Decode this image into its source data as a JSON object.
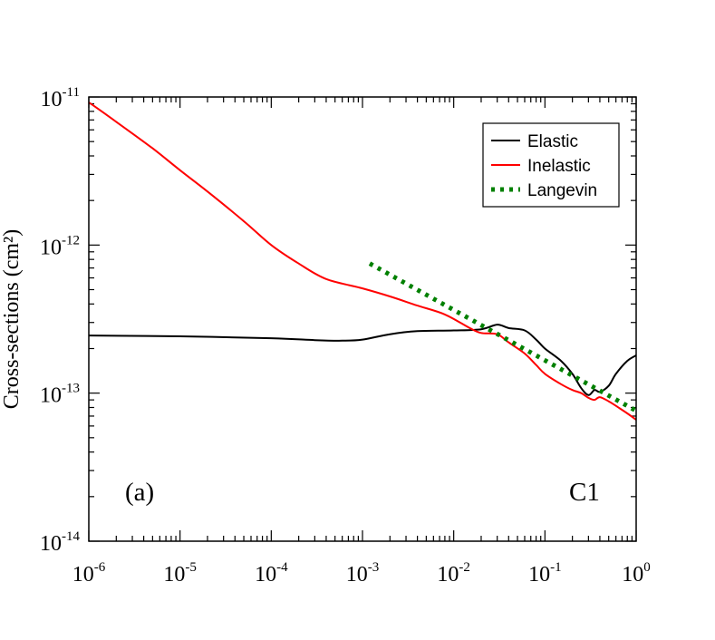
{
  "chart_data": {
    "type": "line",
    "title": "",
    "xlabel": "",
    "ylabel": "Cross-sections (cm²)",
    "xscale": "log",
    "yscale": "log",
    "xlim": [
      1e-06,
      1
    ],
    "ylim": [
      1e-14,
      1e-11
    ],
    "grid": false,
    "legend_position": "top-right",
    "x_ticks": [
      {
        "base": "10",
        "exp": "-6"
      },
      {
        "base": "10",
        "exp": "-5"
      },
      {
        "base": "10",
        "exp": "-4"
      },
      {
        "base": "10",
        "exp": "-3"
      },
      {
        "base": "10",
        "exp": "-2"
      },
      {
        "base": "10",
        "exp": "-1"
      },
      {
        "base": "10",
        "exp": "0"
      }
    ],
    "y_ticks": [
      {
        "base": "10",
        "exp": "-14"
      },
      {
        "base": "10",
        "exp": "-13"
      },
      {
        "base": "10",
        "exp": "-12"
      },
      {
        "base": "10",
        "exp": "-11"
      }
    ],
    "annotations": {
      "panel": "(a)",
      "label": "C1"
    },
    "series": [
      {
        "name": "Elastic",
        "color": "#000000",
        "style": "solid",
        "x": [
          1e-06,
          1e-05,
          0.0001,
          0.0003,
          0.0006,
          0.001,
          0.002,
          0.004,
          0.01,
          0.02,
          0.03,
          0.04,
          0.06,
          0.08,
          0.1,
          0.15,
          0.2,
          0.25,
          0.3,
          0.35,
          0.4,
          0.5,
          0.6,
          0.8,
          1.0
        ],
        "y": [
          2.45e-13,
          2.42e-13,
          2.35e-13,
          2.28e-13,
          2.26e-13,
          2.3e-13,
          2.5e-13,
          2.62e-13,
          2.65e-13,
          2.7e-13,
          2.9e-13,
          2.75e-13,
          2.65e-13,
          2.3e-13,
          2e-13,
          1.65e-13,
          1.35e-13,
          1.08e-13,
          9.7e-14,
          1.05e-13,
          1.02e-13,
          1.12e-13,
          1.35e-13,
          1.65e-13,
          1.8e-13
        ]
      },
      {
        "name": "Inelastic",
        "color": "#ff0000",
        "style": "solid",
        "x": [
          1e-06,
          2e-06,
          5e-06,
          1e-05,
          2e-05,
          5e-05,
          0.0001,
          0.0002,
          0.0004,
          0.001,
          0.002,
          0.004,
          0.008,
          0.015,
          0.02,
          0.03,
          0.04,
          0.06,
          0.08,
          0.1,
          0.15,
          0.2,
          0.25,
          0.3,
          0.35,
          0.4,
          0.5,
          0.6,
          0.8,
          1.0
        ],
        "y": [
          9.2e-12,
          6.8e-12,
          4.5e-12,
          3.2e-12,
          2.3e-12,
          1.45e-12,
          1e-12,
          7.5e-13,
          5.9e-13,
          5.1e-13,
          4.5e-13,
          3.9e-13,
          3.4e-13,
          2.75e-13,
          2.55e-13,
          2.5e-13,
          2.2e-13,
          1.85e-13,
          1.55e-13,
          1.35e-13,
          1.15e-13,
          1.05e-13,
          1e-13,
          9.3e-14,
          9e-14,
          9.4e-14,
          8.8e-14,
          8.2e-14,
          7.3e-14,
          6.6e-14
        ]
      },
      {
        "name": "Langevin",
        "color": "#008000",
        "style": "dotted",
        "x": [
          0.0012,
          1.0
        ],
        "y": [
          7.5e-13,
          7.6e-14
        ]
      }
    ]
  }
}
